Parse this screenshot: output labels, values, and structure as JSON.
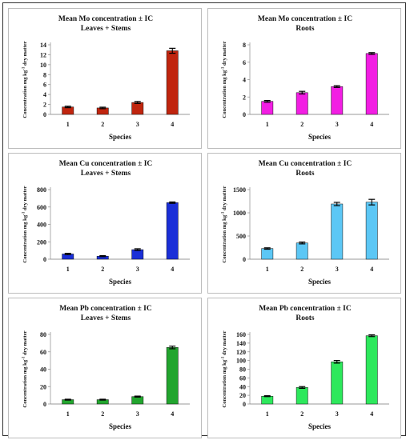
{
  "ylabel_text": "Concentration mg kg",
  "ylabel_sup": "-1",
  "ylabel_tail": " dry matter",
  "chart_data": [
    {
      "type": "bar",
      "title": "Mean Mo concentration  ±  IC",
      "subtitle": "Leaves + Stems",
      "categories": [
        "1",
        "2",
        "3",
        "4"
      ],
      "values": [
        1.5,
        1.3,
        2.4,
        12.8
      ],
      "errors": [
        0.15,
        0.15,
        0.2,
        0.5
      ],
      "xlabel": "Species",
      "ylim": [
        0,
        14
      ],
      "yticks": [
        0,
        2,
        4,
        6,
        8,
        10,
        12,
        14
      ],
      "color": "#c0250e"
    },
    {
      "type": "bar",
      "title": "Mean Mo concentration  ±  IC",
      "subtitle": "Roots",
      "categories": [
        "1",
        "2",
        "3",
        "4"
      ],
      "values": [
        1.5,
        2.5,
        3.2,
        7.0
      ],
      "errors": [
        0.1,
        0.15,
        0.1,
        0.1
      ],
      "xlabel": "Species",
      "ylim": [
        0,
        8
      ],
      "yticks": [
        0,
        2,
        4,
        6,
        8
      ],
      "color": "#f21ee3"
    },
    {
      "type": "bar",
      "title": "Mean Cu concentration  ±  IC",
      "subtitle": "Leaves + Stems",
      "categories": [
        "1",
        "2",
        "3",
        "4"
      ],
      "values": [
        60,
        35,
        110,
        650
      ],
      "errors": [
        8,
        6,
        10,
        8
      ],
      "xlabel": "Species",
      "ylim": [
        0,
        800
      ],
      "yticks": [
        0,
        200,
        400,
        600,
        800
      ],
      "color": "#1a2fd8"
    },
    {
      "type": "bar",
      "title": "Mean Cu concentration  ±  IC",
      "subtitle": "Roots",
      "categories": [
        "1",
        "2",
        "3",
        "4"
      ],
      "values": [
        230,
        350,
        1190,
        1230
      ],
      "errors": [
        15,
        20,
        35,
        60
      ],
      "xlabel": "Species",
      "ylim": [
        0,
        1500
      ],
      "yticks": [
        0,
        500,
        1000,
        1500
      ],
      "color": "#5cc7f5"
    },
    {
      "type": "bar",
      "title": "Mean Pb concentration  ±  IC",
      "subtitle": "Leaves + Stems",
      "categories": [
        "1",
        "2",
        "3",
        "4"
      ],
      "values": [
        5,
        5,
        8.5,
        65
      ],
      "errors": [
        0.5,
        0.5,
        0.6,
        1.5
      ],
      "xlabel": "Species",
      "ylim": [
        0,
        80
      ],
      "yticks": [
        0,
        20,
        40,
        60,
        80
      ],
      "color": "#22a52e"
    },
    {
      "type": "bar",
      "title": "Mean Pb concentration  ±  IC",
      "subtitle": "Roots",
      "categories": [
        "1",
        "2",
        "3",
        "4"
      ],
      "values": [
        18,
        38,
        97,
        157
      ],
      "errors": [
        1,
        2,
        3,
        2
      ],
      "xlabel": "Species",
      "ylim": [
        0,
        160
      ],
      "yticks": [
        0,
        20,
        40,
        60,
        80,
        100,
        120,
        140,
        160
      ],
      "color": "#2de85c"
    }
  ]
}
